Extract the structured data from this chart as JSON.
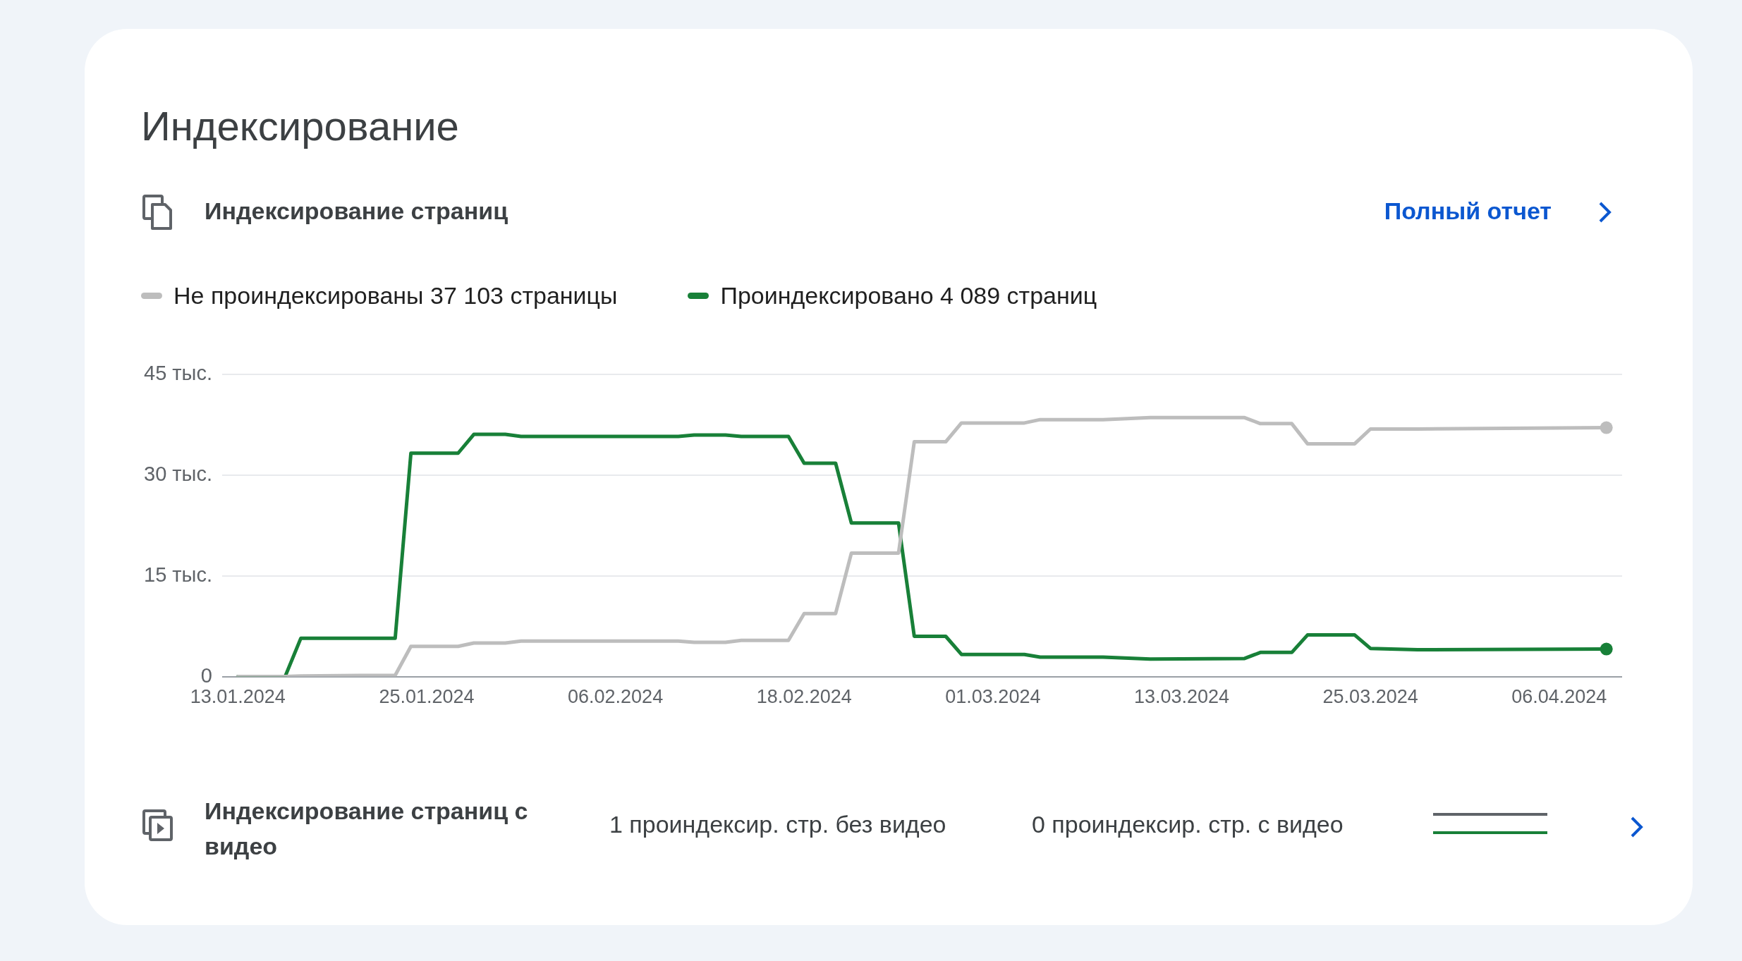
{
  "chart_data": {
    "type": "line",
    "title": "Индексирование",
    "subtitle": "Индексирование страниц",
    "annotations": [
      "Полный отчет",
      "Индексирование страниц с видео",
      "1 проиндексир. стр. без видео",
      "0 проиндексир. стр. с видео"
    ],
    "x": [
      "2024-01-13",
      "2024-01-16",
      "2024-01-17",
      "2024-01-23",
      "2024-01-24",
      "2024-01-27",
      "2024-01-28",
      "2024-01-30",
      "2024-01-31",
      "2024-02-10",
      "2024-02-11",
      "2024-02-13",
      "2024-02-14",
      "2024-02-17",
      "2024-02-18",
      "2024-02-20",
      "2024-02-21",
      "2024-02-24",
      "2024-02-25",
      "2024-02-27",
      "2024-02-28",
      "2024-03-03",
      "2024-03-04",
      "2024-03-08",
      "2024-03-11",
      "2024-03-17",
      "2024-03-18",
      "2024-03-20",
      "2024-03-21",
      "2024-03-24",
      "2024-03-25",
      "2024-03-28",
      "2024-04-09"
    ],
    "series": [
      {
        "name": "Не проиндексированы 37 103 страницы",
        "color": "#bdbdbd",
        "values": [
          0,
          0,
          0.1,
          0.2,
          4.5,
          4.5,
          5.0,
          5.0,
          5.3,
          5.3,
          5.1,
          5.1,
          5.4,
          5.4,
          9.4,
          9.4,
          18.4,
          18.4,
          35.0,
          35.0,
          37.8,
          37.8,
          38.3,
          38.3,
          38.6,
          38.6,
          37.7,
          37.7,
          34.7,
          34.7,
          36.9,
          36.9,
          37.1
        ]
      },
      {
        "name": "Проиндексировано 4 089 страниц",
        "color": "#188038",
        "values": [
          0,
          0,
          5.7,
          5.7,
          33.3,
          33.3,
          36.1,
          36.1,
          35.8,
          35.8,
          36.0,
          36.0,
          35.8,
          35.8,
          31.8,
          31.8,
          22.9,
          22.9,
          6.0,
          6.0,
          3.3,
          3.3,
          2.9,
          2.9,
          2.6,
          2.7,
          3.6,
          3.6,
          6.2,
          6.2,
          4.2,
          4.0,
          4.1
        ]
      }
    ],
    "xlim": [
      "2024-01-12",
      "2024-04-10"
    ],
    "xticks": [
      {
        "value": "2024-01-13",
        "label": "13.01.2024"
      },
      {
        "value": "2024-01-25",
        "label": "25.01.2024"
      },
      {
        "value": "2024-02-06",
        "label": "06.02.2024"
      },
      {
        "value": "2024-02-18",
        "label": "18.02.2024"
      },
      {
        "value": "2024-03-01",
        "label": "01.03.2024"
      },
      {
        "value": "2024-03-13",
        "label": "13.03.2024"
      },
      {
        "value": "2024-03-25",
        "label": "25.03.2024"
      },
      {
        "value": "2024-04-06",
        "label": "06.04.2024"
      }
    ],
    "ylim": [
      0,
      45
    ],
    "yticks": [
      {
        "value": 0,
        "label": "0"
      },
      {
        "value": 15,
        "label": "15 тыс."
      },
      {
        "value": 30,
        "label": "30 тыс."
      },
      {
        "value": 45,
        "label": "45 тыс."
      }
    ],
    "grid": "y",
    "legend": "top left",
    "line_style": "solid"
  }
}
